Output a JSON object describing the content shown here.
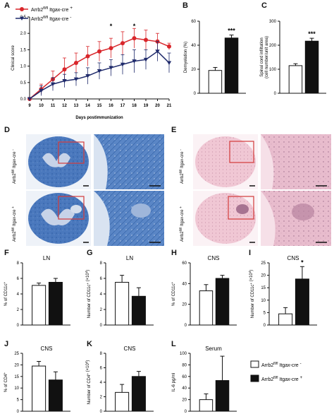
{
  "panels": {
    "A": {
      "letter": "A"
    },
    "B": {
      "letter": "B"
    },
    "C": {
      "letter": "C"
    },
    "D": {
      "letter": "D"
    },
    "E": {
      "letter": "E"
    },
    "F": {
      "letter": "F"
    },
    "G": {
      "letter": "G"
    },
    "H": {
      "letter": "H"
    },
    "I": {
      "letter": "I"
    },
    "J": {
      "letter": "J"
    },
    "K": {
      "letter": "K"
    },
    "L": {
      "letter": "L"
    }
  },
  "colors": {
    "cre_pos": "#d9262b",
    "cre_neg": "#1f2a6b",
    "lfb_blue": "#3f6fb5",
    "he_pink": "#e8b8c8",
    "box": "#d23a3a"
  },
  "legend_top": {
    "cre_pos": {
      "base": "Arrb2",
      "sup": "fl/fl",
      "mid": " Itgax-cre ",
      "sign": "+"
    },
    "cre_neg": {
      "base": "Arrb2",
      "sup": "fl/fl",
      "mid": " Itgax-cre ",
      "sign": "-"
    }
  },
  "legend_bottom": {
    "cre_neg": {
      "base": "Arrb2",
      "sup": "fl/fl",
      "mid": " Itgax-cre ",
      "sign": "-"
    },
    "cre_pos": {
      "base": "Arrb2",
      "sup": "fl/fl",
      "mid": " Itgax-cre ",
      "sign": "+"
    }
  },
  "image_row_labels": {
    "neg": {
      "base": "Arrb2",
      "sup": "fl/fl",
      "mid": " Itgax-cre ",
      "sign": "-"
    },
    "pos": {
      "base": "Arrb2",
      "sup": "fl/fl",
      "mid": " Itgax-cre ",
      "sign": "+"
    }
  },
  "chart_data": [
    {
      "panel": "A",
      "type": "line",
      "xlabel": "Days postimmunization",
      "ylabel": "Clinical score",
      "x": [
        9,
        10,
        11,
        12,
        13,
        14,
        15,
        16,
        17,
        18,
        19,
        20,
        21
      ],
      "xlim": [
        9,
        21
      ],
      "ylim": [
        0,
        2.5
      ],
      "yticks": [
        0,
        0.5,
        1.0,
        1.5,
        2.0,
        2.5
      ],
      "series": [
        {
          "key": "cre_pos",
          "values": [
            0,
            0.3,
            0.6,
            0.9,
            1.1,
            1.3,
            1.45,
            1.55,
            1.7,
            1.85,
            1.8,
            1.75,
            1.6
          ],
          "err": [
            0,
            0.15,
            0.25,
            0.35,
            0.3,
            0.3,
            0.3,
            0.3,
            0.35,
            0.3,
            0.3,
            0.25,
            0.1
          ]
        },
        {
          "key": "cre_neg",
          "values": [
            0,
            0.25,
            0.45,
            0.55,
            0.6,
            0.7,
            0.85,
            0.95,
            1.05,
            1.15,
            1.2,
            1.45,
            1.1
          ],
          "err": [
            0,
            0.15,
            0.2,
            0.2,
            0.2,
            0.25,
            0.25,
            0.25,
            0.3,
            0.35,
            0.3,
            0.3,
            0.3
          ]
        }
      ],
      "annotations": [
        {
          "x": 16,
          "label": "*"
        },
        {
          "x": 18,
          "label": "*"
        }
      ]
    },
    {
      "panel": "B",
      "type": "bar",
      "ylabel": "Demyelation (%)",
      "title": "",
      "ylim": [
        0,
        60
      ],
      "yticks": [
        0,
        20,
        40,
        60
      ],
      "values": [
        19,
        46
      ],
      "err": [
        2.5,
        2.5
      ],
      "sig": "***"
    },
    {
      "panel": "C",
      "type": "bar",
      "ylabel": "Spinal cord infiltation (cell number/unit area)",
      "title": "",
      "ylim": [
        0,
        300
      ],
      "yticks": [
        0,
        100,
        200,
        300
      ],
      "values": [
        115,
        217
      ],
      "err": [
        8,
        12
      ],
      "sig": "***"
    },
    {
      "panel": "F",
      "type": "bar",
      "ylabel": "% of CD11c+",
      "title": "LN",
      "ylim": [
        0,
        8
      ],
      "yticks": [
        0,
        2,
        4,
        6,
        8
      ],
      "values": [
        5.1,
        5.5
      ],
      "err": [
        0.3,
        0.5
      ],
      "sig": ""
    },
    {
      "panel": "G",
      "type": "bar",
      "ylabel": "Number of CD11c+ (×10^4)",
      "title": "LN",
      "ylim": [
        0,
        8
      ],
      "yticks": [
        0,
        2,
        4,
        6,
        8
      ],
      "values": [
        5.5,
        3.7
      ],
      "err": [
        0.9,
        1.1
      ],
      "sig": ""
    },
    {
      "panel": "H",
      "type": "bar",
      "ylabel": "% of CD11c+",
      "title": "CNS",
      "ylim": [
        0,
        60
      ],
      "yticks": [
        0,
        20,
        40,
        60
      ],
      "values": [
        33,
        45
      ],
      "err": [
        6,
        3
      ],
      "sig": ""
    },
    {
      "panel": "I",
      "type": "bar",
      "ylabel": "Number of CD11c+ (×10^4)",
      "title": "CNS",
      "ylim": [
        0,
        25
      ],
      "yticks": [
        0,
        5,
        10,
        15,
        20,
        25
      ],
      "values": [
        4.5,
        18.5
      ],
      "err": [
        2.5,
        5
      ],
      "sig": "*"
    },
    {
      "panel": "J",
      "type": "bar",
      "ylabel": "% of CD4+",
      "title": "CNS",
      "ylim": [
        0,
        25
      ],
      "yticks": [
        0,
        5,
        10,
        15,
        20,
        25
      ],
      "values": [
        19.5,
        13.5
      ],
      "err": [
        2,
        3.5
      ],
      "sig": ""
    },
    {
      "panel": "K",
      "type": "bar",
      "ylabel": "Number of CD4+ (×10^4)",
      "title": "CNS",
      "ylim": [
        0,
        8
      ],
      "yticks": [
        0,
        2,
        4,
        6,
        8
      ],
      "values": [
        2.6,
        4.8
      ],
      "err": [
        1.1,
        0.7
      ],
      "sig": ""
    },
    {
      "panel": "L",
      "type": "bar",
      "ylabel": "IL-6 pg/ml",
      "title": "Serum",
      "ylim": [
        0,
        100
      ],
      "yticks": [
        0,
        20,
        40,
        60,
        80,
        100
      ],
      "values": [
        20,
        53
      ],
      "err": [
        10,
        42
      ],
      "sig": ""
    }
  ]
}
